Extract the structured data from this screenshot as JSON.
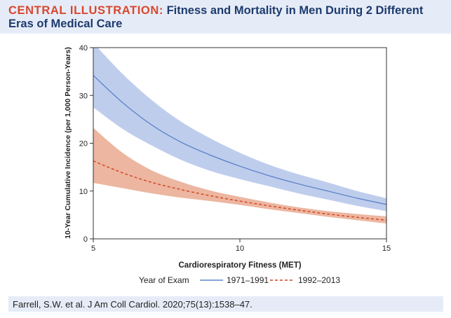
{
  "header": {
    "prefix": "CENTRAL ILLUSTRATION:",
    "title": "Fitness and Mortality in Men During 2 Different Eras of Medical Care"
  },
  "citation": "Farrell, S.W. et al. J Am Coll Cardiol. 2020;75(13):1538–47.",
  "colors": {
    "header_bg": "#e6ecf7",
    "title_accent": "#d8472e",
    "title_text": "#1d3b6e",
    "series1_line": "#5f86c9",
    "series1_band": "#b4c4ea",
    "series2_line": "#d2421f",
    "series2_band": "#e7a488"
  },
  "chart_data": {
    "type": "line",
    "title": "",
    "xlabel": "Cardiorespiratory Fitness (MET)",
    "ylabel": "10-Year Cumulative Incidence (per 1,000 Person-Years)",
    "xlim": [
      5,
      15
    ],
    "ylim": [
      0,
      40
    ],
    "xticks": [
      5,
      10,
      15
    ],
    "yticks": [
      0,
      10,
      20,
      30,
      40
    ],
    "legend": {
      "title": "Year of Exam",
      "placement": "bottom"
    },
    "grid": false,
    "x": [
      5,
      6,
      7,
      8,
      9,
      10,
      11,
      12,
      13,
      14,
      15
    ],
    "series": [
      {
        "name": "1971–1991",
        "style": "solid",
        "values": [
          34.2,
          28.5,
          23.8,
          20.2,
          17.5,
          15.2,
          13.2,
          11.5,
          10.0,
          8.5,
          7.2
        ],
        "upper": [
          41.0,
          34.5,
          29.0,
          24.5,
          21.0,
          18.0,
          15.5,
          13.5,
          11.8,
          10.0,
          8.5
        ],
        "lower": [
          27.5,
          23.0,
          19.5,
          16.5,
          14.2,
          12.5,
          11.0,
          9.5,
          8.2,
          6.9,
          5.8
        ]
      },
      {
        "name": "1992–2013",
        "style": "dashed",
        "values": [
          16.3,
          13.8,
          11.8,
          10.3,
          9.0,
          7.9,
          6.9,
          6.0,
          5.2,
          4.5,
          3.9
        ],
        "upper": [
          23.2,
          18.0,
          14.3,
          11.9,
          10.1,
          8.8,
          7.6,
          6.6,
          5.8,
          5.2,
          4.7
        ],
        "lower": [
          11.7,
          10.6,
          9.5,
          8.6,
          7.9,
          7.1,
          6.2,
          5.4,
          4.6,
          3.9,
          3.2
        ]
      }
    ]
  }
}
